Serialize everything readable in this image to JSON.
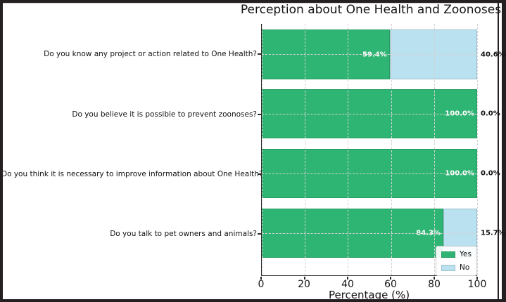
{
  "frame": {
    "background": "#ffffff",
    "border_color": "#241f21"
  },
  "chart_data": {
    "type": "bar",
    "orientation": "horizontal",
    "stacked": true,
    "title": "Perception about One Health and Zoonoses",
    "xlabel": "Percentage (%)",
    "xlim": [
      0,
      100
    ],
    "xticks": [
      "0",
      "20",
      "40",
      "60",
      "80",
      "100"
    ],
    "xticks_values": [
      0,
      20,
      40,
      60,
      80,
      100
    ],
    "grid": "dashed",
    "legend_position": "lower-right",
    "categories": [
      "Do you know any project or action related to One Health?",
      "Do you believe it is possible to prevent zoonoses?",
      "Do you think it is necessary to improve information about One Health?",
      "Do you talk to pet owners and animals?"
    ],
    "series": [
      {
        "name": "Yes",
        "color": "#2fb573",
        "values": [
          59.4,
          100.0,
          100.0,
          84.3
        ],
        "labels": [
          "59.4%",
          "100.0%",
          "100.0%",
          "84.3%"
        ],
        "label_color": "#ffffff"
      },
      {
        "name": "No",
        "color": "#b9e1f0",
        "values": [
          40.6,
          0.0,
          0.0,
          15.7
        ],
        "labels": [
          "40.6%",
          "0.0%",
          "0.0%",
          "15.7%"
        ],
        "label_color": "#111111"
      }
    ]
  }
}
